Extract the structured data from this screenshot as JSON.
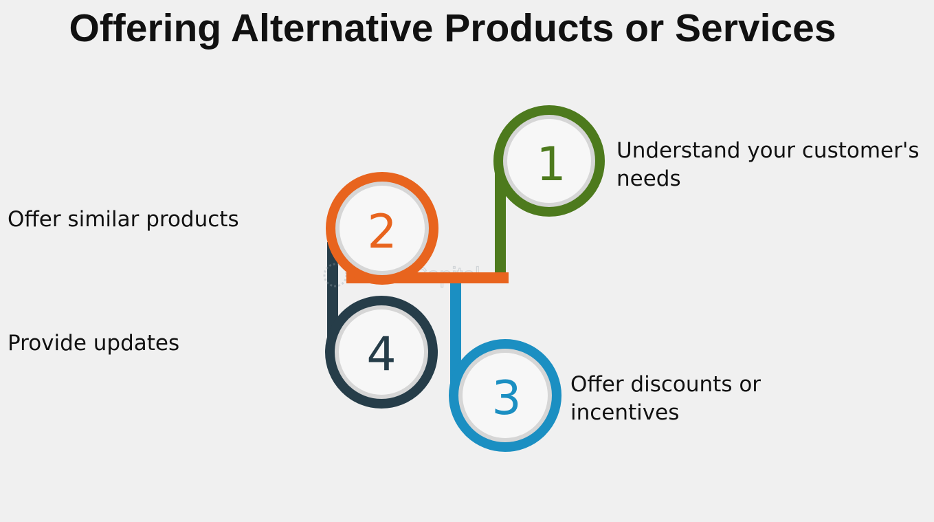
{
  "title": "Offering Alternative Products or Services",
  "watermark": "FasterCapital",
  "colors": {
    "background": "#f0f0f0",
    "step1": "#4d7a1d",
    "step2": "#e8641e",
    "step3": "#1b8fc2",
    "step4": "#263d49",
    "circle_fill": "#f7f7f7",
    "circle_ring": "#d6d6d6"
  },
  "steps": [
    {
      "number": "1",
      "label": "Understand your customer's needs"
    },
    {
      "number": "2",
      "label": "Offer similar products"
    },
    {
      "number": "3",
      "label": "Offer discounts or incentives"
    },
    {
      "number": "4",
      "label": "Provide updates"
    }
  ]
}
